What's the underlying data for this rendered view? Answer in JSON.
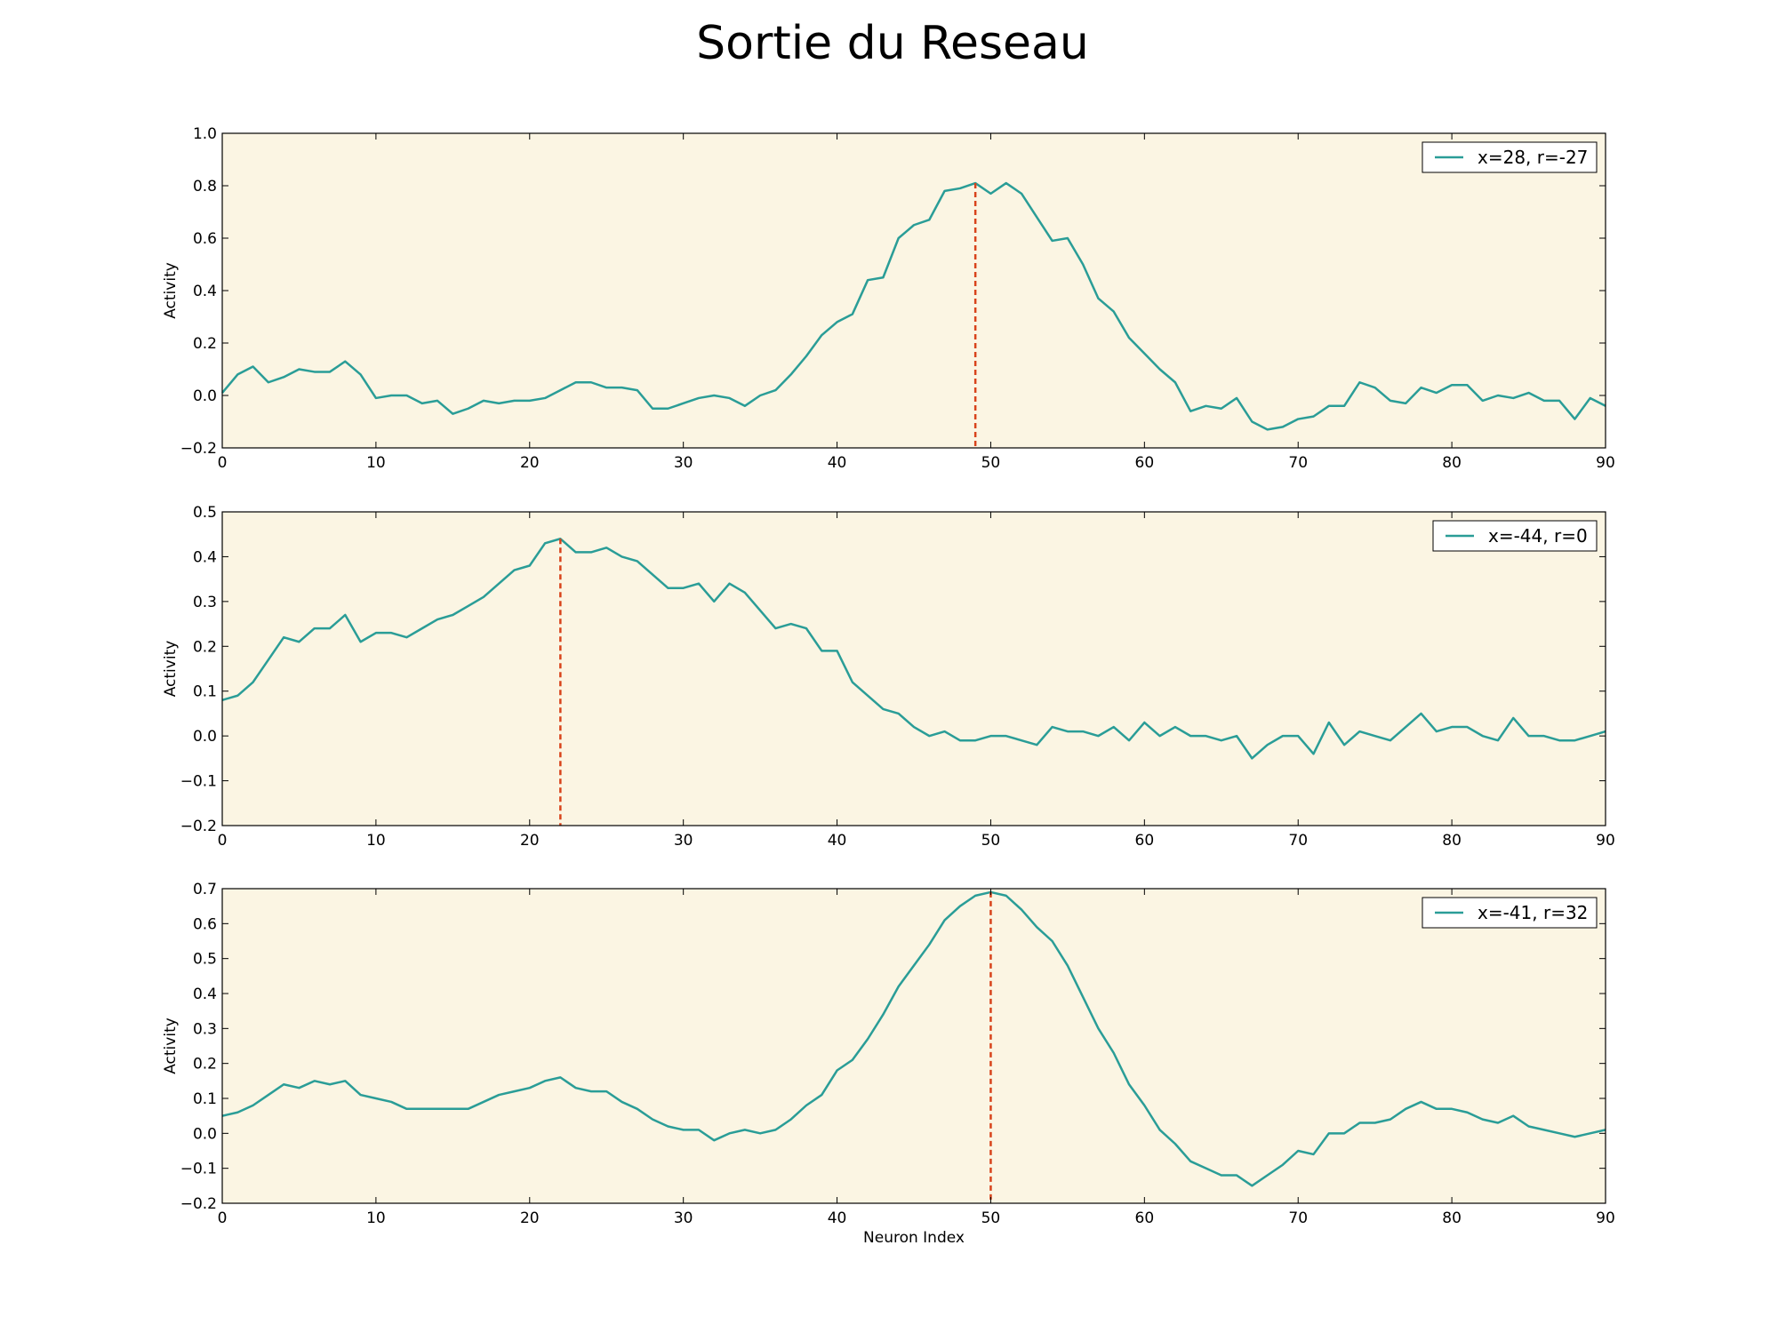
{
  "figure": {
    "suptitle": "Sortie du Reseau",
    "background": "#ffffff",
    "axes_facecolor": "#fbf5e3",
    "line_color": "#2a9d97",
    "marker_color": "#d8431b"
  },
  "chart_data": [
    {
      "type": "line",
      "title": "",
      "xlabel": "",
      "ylabel": "Activity",
      "xlim": [
        0,
        90
      ],
      "ylim": [
        -0.2,
        1.0
      ],
      "xticks": [
        0,
        10,
        20,
        30,
        40,
        50,
        60,
        70,
        80,
        90
      ],
      "yticks": [
        -0.2,
        0.0,
        0.2,
        0.4,
        0.6,
        0.8,
        1.0
      ],
      "ytick_labels": [
        "−0.2",
        "0.0",
        "0.2",
        "0.4",
        "0.6",
        "0.8",
        "1.0"
      ],
      "xtick_labels": [
        "0",
        "10",
        "20",
        "30",
        "40",
        "50",
        "60",
        "70",
        "80",
        "90"
      ],
      "legend_position": "top-right",
      "grid": false,
      "peak_x": 49,
      "peak_y": 0.81,
      "series": [
        {
          "name": "x=28, r=-27",
          "x": [
            0,
            1,
            2,
            3,
            4,
            5,
            6,
            7,
            8,
            9,
            10,
            11,
            12,
            13,
            14,
            15,
            16,
            17,
            18,
            19,
            20,
            21,
            22,
            23,
            24,
            25,
            26,
            27,
            28,
            29,
            30,
            31,
            32,
            33,
            34,
            35,
            36,
            37,
            38,
            39,
            40,
            41,
            42,
            43,
            44,
            45,
            46,
            47,
            48,
            49,
            50,
            51,
            52,
            53,
            54,
            55,
            56,
            57,
            58,
            59,
            60,
            61,
            62,
            63,
            64,
            65,
            66,
            67,
            68,
            69,
            70,
            71,
            72,
            73,
            74,
            75,
            76,
            77,
            78,
            79,
            80,
            81,
            82,
            83,
            84,
            85,
            86,
            87,
            88,
            89,
            90
          ],
          "values": [
            0.01,
            0.08,
            0.11,
            0.05,
            0.07,
            0.1,
            0.09,
            0.09,
            0.13,
            0.08,
            -0.01,
            0.0,
            0.0,
            -0.03,
            -0.02,
            -0.07,
            -0.05,
            -0.02,
            -0.03,
            -0.02,
            -0.02,
            -0.01,
            0.02,
            0.05,
            0.05,
            0.03,
            0.03,
            0.02,
            -0.05,
            -0.05,
            -0.03,
            -0.01,
            0.0,
            -0.01,
            -0.04,
            0.0,
            0.02,
            0.08,
            0.15,
            0.23,
            0.28,
            0.31,
            0.44,
            0.45,
            0.6,
            0.65,
            0.67,
            0.78,
            0.79,
            0.81,
            0.77,
            0.81,
            0.77,
            0.68,
            0.59,
            0.6,
            0.5,
            0.37,
            0.32,
            0.22,
            0.16,
            0.1,
            0.05,
            -0.06,
            -0.04,
            -0.05,
            -0.01,
            -0.1,
            -0.13,
            -0.12,
            -0.09,
            -0.08,
            -0.04,
            -0.04,
            0.05,
            0.03,
            -0.02,
            -0.03,
            0.03,
            0.01,
            0.04,
            0.04,
            -0.02,
            0.0,
            -0.01,
            0.01,
            -0.02,
            -0.02,
            -0.09,
            -0.01,
            -0.04
          ]
        }
      ]
    },
    {
      "type": "line",
      "title": "",
      "xlabel": "",
      "ylabel": "Activity",
      "xlim": [
        0,
        90
      ],
      "ylim": [
        -0.2,
        0.5
      ],
      "xticks": [
        0,
        10,
        20,
        30,
        40,
        50,
        60,
        70,
        80,
        90
      ],
      "yticks": [
        -0.2,
        -0.1,
        0.0,
        0.1,
        0.2,
        0.3,
        0.4,
        0.5
      ],
      "ytick_labels": [
        "−0.2",
        "−0.1",
        "0.0",
        "0.1",
        "0.2",
        "0.3",
        "0.4",
        "0.5"
      ],
      "xtick_labels": [
        "0",
        "10",
        "20",
        "30",
        "40",
        "50",
        "60",
        "70",
        "80",
        "90"
      ],
      "legend_position": "top-right",
      "grid": false,
      "peak_x": 22,
      "peak_y": 0.44,
      "series": [
        {
          "name": "x=-44, r=0",
          "x": [
            0,
            1,
            2,
            3,
            4,
            5,
            6,
            7,
            8,
            9,
            10,
            11,
            12,
            13,
            14,
            15,
            16,
            17,
            18,
            19,
            20,
            21,
            22,
            23,
            24,
            25,
            26,
            27,
            28,
            29,
            30,
            31,
            32,
            33,
            34,
            35,
            36,
            37,
            38,
            39,
            40,
            41,
            42,
            43,
            44,
            45,
            46,
            47,
            48,
            49,
            50,
            51,
            52,
            53,
            54,
            55,
            56,
            57,
            58,
            59,
            60,
            61,
            62,
            63,
            64,
            65,
            66,
            67,
            68,
            69,
            70,
            71,
            72,
            73,
            74,
            75,
            76,
            77,
            78,
            79,
            80,
            81,
            82,
            83,
            84,
            85,
            86,
            87,
            88,
            89,
            90
          ],
          "values": [
            0.08,
            0.09,
            0.12,
            0.17,
            0.22,
            0.21,
            0.24,
            0.24,
            0.27,
            0.21,
            0.23,
            0.23,
            0.22,
            0.24,
            0.26,
            0.27,
            0.29,
            0.31,
            0.34,
            0.37,
            0.38,
            0.43,
            0.44,
            0.41,
            0.41,
            0.42,
            0.4,
            0.39,
            0.36,
            0.33,
            0.33,
            0.34,
            0.3,
            0.34,
            0.32,
            0.28,
            0.24,
            0.25,
            0.24,
            0.19,
            0.19,
            0.12,
            0.09,
            0.06,
            0.05,
            0.02,
            0.0,
            0.01,
            -0.01,
            -0.01,
            0.0,
            0.0,
            -0.01,
            -0.02,
            0.02,
            0.01,
            0.01,
            0.0,
            0.02,
            -0.01,
            0.03,
            0.0,
            0.02,
            0.0,
            0.0,
            -0.01,
            0.0,
            -0.05,
            -0.02,
            0.0,
            0.0,
            -0.04,
            0.03,
            -0.02,
            0.01,
            0.0,
            -0.01,
            0.02,
            0.05,
            0.01,
            0.02,
            0.02,
            0.0,
            -0.01,
            0.04,
            0.0,
            0.0,
            -0.01,
            -0.01,
            0.0,
            0.01
          ]
        }
      ]
    },
    {
      "type": "line",
      "title": "",
      "xlabel": "Neuron Index",
      "ylabel": "Activity",
      "xlim": [
        0,
        90
      ],
      "ylim": [
        -0.2,
        0.7
      ],
      "xticks": [
        0,
        10,
        20,
        30,
        40,
        50,
        60,
        70,
        80,
        90
      ],
      "yticks": [
        -0.2,
        -0.1,
        0.0,
        0.1,
        0.2,
        0.3,
        0.4,
        0.5,
        0.6,
        0.7
      ],
      "ytick_labels": [
        "−0.2",
        "−0.1",
        "0.0",
        "0.1",
        "0.2",
        "0.3",
        "0.4",
        "0.5",
        "0.6",
        "0.7"
      ],
      "xtick_labels": [
        "0",
        "10",
        "20",
        "30",
        "40",
        "50",
        "60",
        "70",
        "80",
        "90"
      ],
      "legend_position": "top-right",
      "grid": false,
      "peak_x": 50,
      "peak_y": 0.69,
      "series": [
        {
          "name": "x=-41, r=32",
          "x": [
            0,
            1,
            2,
            3,
            4,
            5,
            6,
            7,
            8,
            9,
            10,
            11,
            12,
            13,
            14,
            15,
            16,
            17,
            18,
            19,
            20,
            21,
            22,
            23,
            24,
            25,
            26,
            27,
            28,
            29,
            30,
            31,
            32,
            33,
            34,
            35,
            36,
            37,
            38,
            39,
            40,
            41,
            42,
            43,
            44,
            45,
            46,
            47,
            48,
            49,
            50,
            51,
            52,
            53,
            54,
            55,
            56,
            57,
            58,
            59,
            60,
            61,
            62,
            63,
            64,
            65,
            66,
            67,
            68,
            69,
            70,
            71,
            72,
            73,
            74,
            75,
            76,
            77,
            78,
            79,
            80,
            81,
            82,
            83,
            84,
            85,
            86,
            87,
            88,
            89,
            90
          ],
          "values": [
            0.05,
            0.06,
            0.08,
            0.11,
            0.14,
            0.13,
            0.15,
            0.14,
            0.15,
            0.11,
            0.1,
            0.09,
            0.07,
            0.07,
            0.07,
            0.07,
            0.07,
            0.09,
            0.11,
            0.12,
            0.13,
            0.15,
            0.16,
            0.13,
            0.12,
            0.12,
            0.09,
            0.07,
            0.04,
            0.02,
            0.01,
            0.01,
            -0.02,
            0.0,
            0.01,
            0.0,
            0.01,
            0.04,
            0.08,
            0.11,
            0.18,
            0.21,
            0.27,
            0.34,
            0.42,
            0.48,
            0.54,
            0.61,
            0.65,
            0.68,
            0.69,
            0.68,
            0.64,
            0.59,
            0.55,
            0.48,
            0.39,
            0.3,
            0.23,
            0.14,
            0.08,
            0.01,
            -0.03,
            -0.08,
            -0.1,
            -0.12,
            -0.12,
            -0.15,
            -0.12,
            -0.09,
            -0.05,
            -0.06,
            0.0,
            0.0,
            0.03,
            0.03,
            0.04,
            0.07,
            0.09,
            0.07,
            0.07,
            0.06,
            0.04,
            0.03,
            0.05,
            0.02,
            0.01,
            0.0,
            -0.01,
            0.0,
            0.01
          ]
        }
      ]
    }
  ]
}
